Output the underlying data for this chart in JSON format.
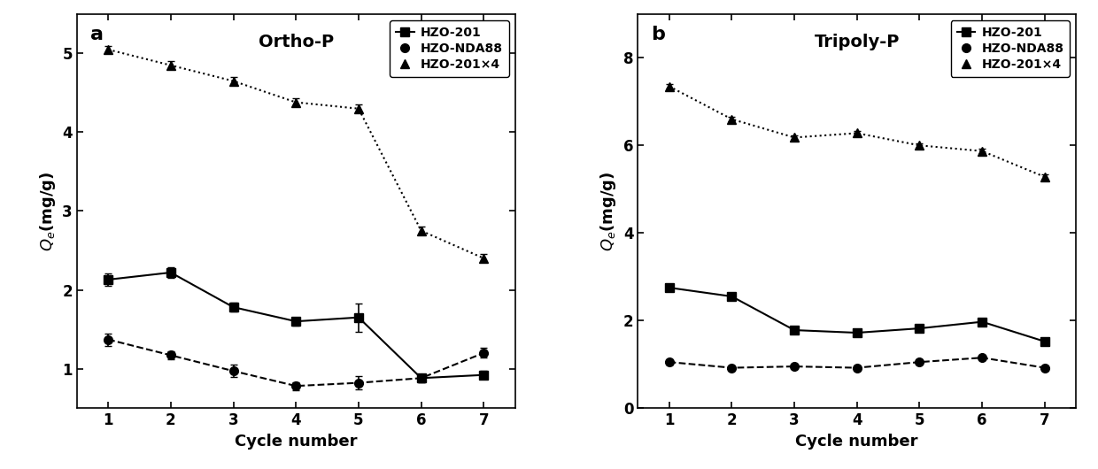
{
  "cycles": [
    1,
    2,
    3,
    4,
    5,
    6,
    7
  ],
  "panel_a": {
    "title": "Ortho-P",
    "label": "a",
    "ylim": [
      0.5,
      5.5
    ],
    "yticks": [
      1,
      2,
      3,
      4,
      5
    ],
    "series_order": [
      "HZO-201",
      "HZO-NDA88",
      "HZO-201×4"
    ],
    "series": {
      "HZO-201": {
        "y": [
          2.13,
          2.22,
          1.78,
          1.6,
          1.65,
          0.88,
          0.92
        ],
        "yerr": [
          0.08,
          0.07,
          0.06,
          0.05,
          0.18,
          0.05,
          0.05
        ],
        "marker": "s",
        "linestyle": "-",
        "color": "#000000"
      },
      "HZO-NDA88": {
        "y": [
          1.37,
          1.17,
          0.97,
          0.78,
          0.82,
          0.88,
          1.2
        ],
        "yerr": [
          0.08,
          0.05,
          0.08,
          0.05,
          0.08,
          0.05,
          0.06
        ],
        "marker": "o",
        "linestyle": "--",
        "color": "#000000"
      },
      "HZO-201×4": {
        "y": [
          5.05,
          4.85,
          4.65,
          4.38,
          4.3,
          2.75,
          2.4
        ],
        "yerr": [
          0.05,
          0.05,
          0.05,
          0.05,
          0.05,
          0.05,
          0.05
        ],
        "marker": "^",
        "linestyle": ":",
        "color": "#000000"
      }
    }
  },
  "panel_b": {
    "title": "Tripoly-P",
    "label": "b",
    "ylim": [
      0,
      9
    ],
    "yticks": [
      0,
      2,
      4,
      6,
      8
    ],
    "series_order": [
      "HZO-201",
      "HZO-NDA88",
      "HZO-201×4"
    ],
    "series": {
      "HZO-201": {
        "y": [
          2.75,
          2.55,
          1.78,
          1.72,
          1.82,
          1.97,
          1.52
        ],
        "yerr": [
          0.06,
          0.05,
          0.05,
          0.05,
          0.05,
          0.05,
          0.05
        ],
        "marker": "s",
        "linestyle": "-",
        "color": "#000000"
      },
      "HZO-NDA88": {
        "y": [
          1.05,
          0.92,
          0.95,
          0.92,
          1.05,
          1.15,
          0.92
        ],
        "yerr": [
          0.05,
          0.04,
          0.04,
          0.04,
          0.04,
          0.04,
          0.04
        ],
        "marker": "o",
        "linestyle": "--",
        "color": "#000000"
      },
      "HZO-201×4": {
        "y": [
          7.35,
          6.6,
          6.18,
          6.28,
          6.0,
          5.87,
          5.28
        ],
        "yerr": [
          0.06,
          0.05,
          0.05,
          0.05,
          0.05,
          0.05,
          0.05
        ],
        "marker": "^",
        "linestyle": ":",
        "color": "#000000"
      }
    }
  },
  "xlabel": "Cycle number",
  "ylabel": "$Q_e$(mg/g)",
  "marker_size": 7,
  "line_width": 1.5,
  "cap_size": 3,
  "elinewidth": 1.2,
  "legend_fontsize": 10,
  "axis_fontsize": 13,
  "label_fontsize": 16,
  "tick_fontsize": 12,
  "title_fontsize": 14,
  "background_color": "#ffffff"
}
